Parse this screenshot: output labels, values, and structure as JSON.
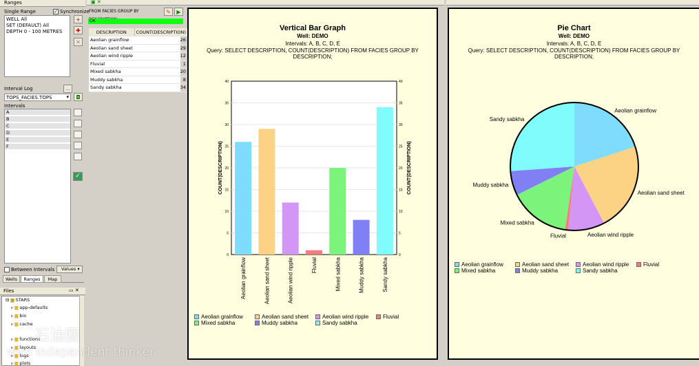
{
  "ranges": {
    "title": "Ranges",
    "single_range": "Single Range",
    "synchronize": "Synchronize",
    "items": [
      "WELL All",
      "SET (DEFAULT) All",
      "DEPTH 0 - 100 METRES"
    ]
  },
  "interval_log": {
    "label": "Interval Log",
    "value": "TOPS_FACIES.TOPS",
    "intervals_label": "Intervals",
    "intervals": [
      "A",
      "B",
      "C",
      "D",
      "E",
      "F"
    ],
    "between": "Between Intervals",
    "values_btn": "Values"
  },
  "tabs": [
    "Wells",
    "Ranges",
    "Map"
  ],
  "files": {
    "title": "Files",
    "items": [
      "STARS",
      "app-defaults",
      "bin",
      "cache",
      "functions",
      "layouts",
      "logs",
      "plots"
    ]
  },
  "query_panel": {
    "query": "FROM FACIES GROUP BY DESCRIPTION;",
    "status": "OK",
    "col1": "DESCRIPTION",
    "col2": "COUNT(DESCRIPTION)"
  },
  "watermark": {
    "line1": "石油圈",
    "line2": "with independent thinker"
  },
  "bar_chart": {
    "title": "Vertical Bar Graph",
    "well": "Well: DEMO",
    "intervals": "Intervals: A, B, C, D, E",
    "query": "Query: SELECT DESCRIPTION, COUNT(DESCRIPTION) FROM FACIES GROUP BY DESCRIPTION;",
    "ylabel": "COUNT(DESCRIPTION)"
  },
  "pie_chart": {
    "title": "Pie Chart",
    "well": "Well: DEMO",
    "intervals": "Intervals: A, B, C, D, E",
    "query": "Query: SELECT DESCRIPTION, COUNT(DESCRIPTION) FROM FACIES GROUP BY DESCRIPTION;"
  },
  "chart_data": [
    {
      "type": "bar",
      "categories": [
        "Aeolian grainflow",
        "Aeolian sand sheet",
        "Aeolian wind ripple",
        "Fluvial",
        "Mixed sabkha",
        "Muddy sabkha",
        "Sandy sabkha"
      ],
      "values": [
        26,
        29,
        12,
        1,
        20,
        8,
        34
      ],
      "colors": [
        "#80dcfc",
        "#fcd284",
        "#d496f4",
        "#f47c7c",
        "#7cf47c",
        "#8080f4",
        "#80fcfc"
      ],
      "ylim": [
        0,
        40
      ],
      "yticks": [
        0,
        5,
        10,
        15,
        20,
        25,
        30,
        35,
        40
      ],
      "ylabel": "COUNT(DESCRIPTION)",
      "title": "Vertical Bar Graph",
      "legend": "bottom"
    },
    {
      "type": "pie",
      "categories": [
        "Aeolian grainflow",
        "Aeolian sand sheet",
        "Aeolian wind ripple",
        "Fluvial",
        "Mixed sabkha",
        "Muddy sabkha",
        "Sandy sabkha"
      ],
      "values": [
        26,
        29,
        12,
        1,
        20,
        8,
        34
      ],
      "colors": [
        "#80dcfc",
        "#fcd284",
        "#d496f4",
        "#f47c7c",
        "#7cf47c",
        "#8080f4",
        "#80fcfc"
      ],
      "title": "Pie Chart",
      "legend": "bottom"
    }
  ]
}
